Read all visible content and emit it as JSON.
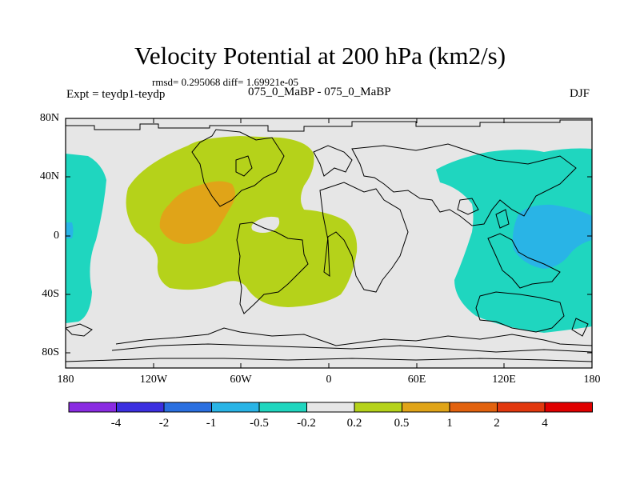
{
  "title": "Velocity Potential at 200 hPa (km2/s)",
  "stats": "rmsd= 0.295068  diff= 1.69921e-05",
  "experiment": "Expt = teydp1-teydp",
  "center_label": "075_0_MaBP - 075_0_MaBP",
  "season": "DJF",
  "lat_ticks": [
    "80N",
    "40N",
    "0",
    "40S",
    "80S"
  ],
  "lon_ticks": [
    "180",
    "120W",
    "60W",
    "0",
    "60E",
    "120E",
    "180"
  ],
  "colorbar": {
    "colors": [
      "#8a2be2",
      "#3b2fe0",
      "#2a6fe0",
      "#29b4e6",
      "#1fd6bf",
      "#e6e6e6",
      "#b5d21a",
      "#e0a418",
      "#e2620e",
      "#e2380e",
      "#e00000"
    ],
    "labels": [
      "-4",
      "-2",
      "-1",
      "-0.5",
      "-0.2",
      "0.2",
      "0.5",
      "1",
      "2",
      "4"
    ]
  },
  "map_colors": {
    "background": "#e6e6e6",
    "teal": "#1fd6bf",
    "blue": "#29b4e6",
    "yellow_green": "#b5d21a",
    "orange": "#e0a418"
  }
}
